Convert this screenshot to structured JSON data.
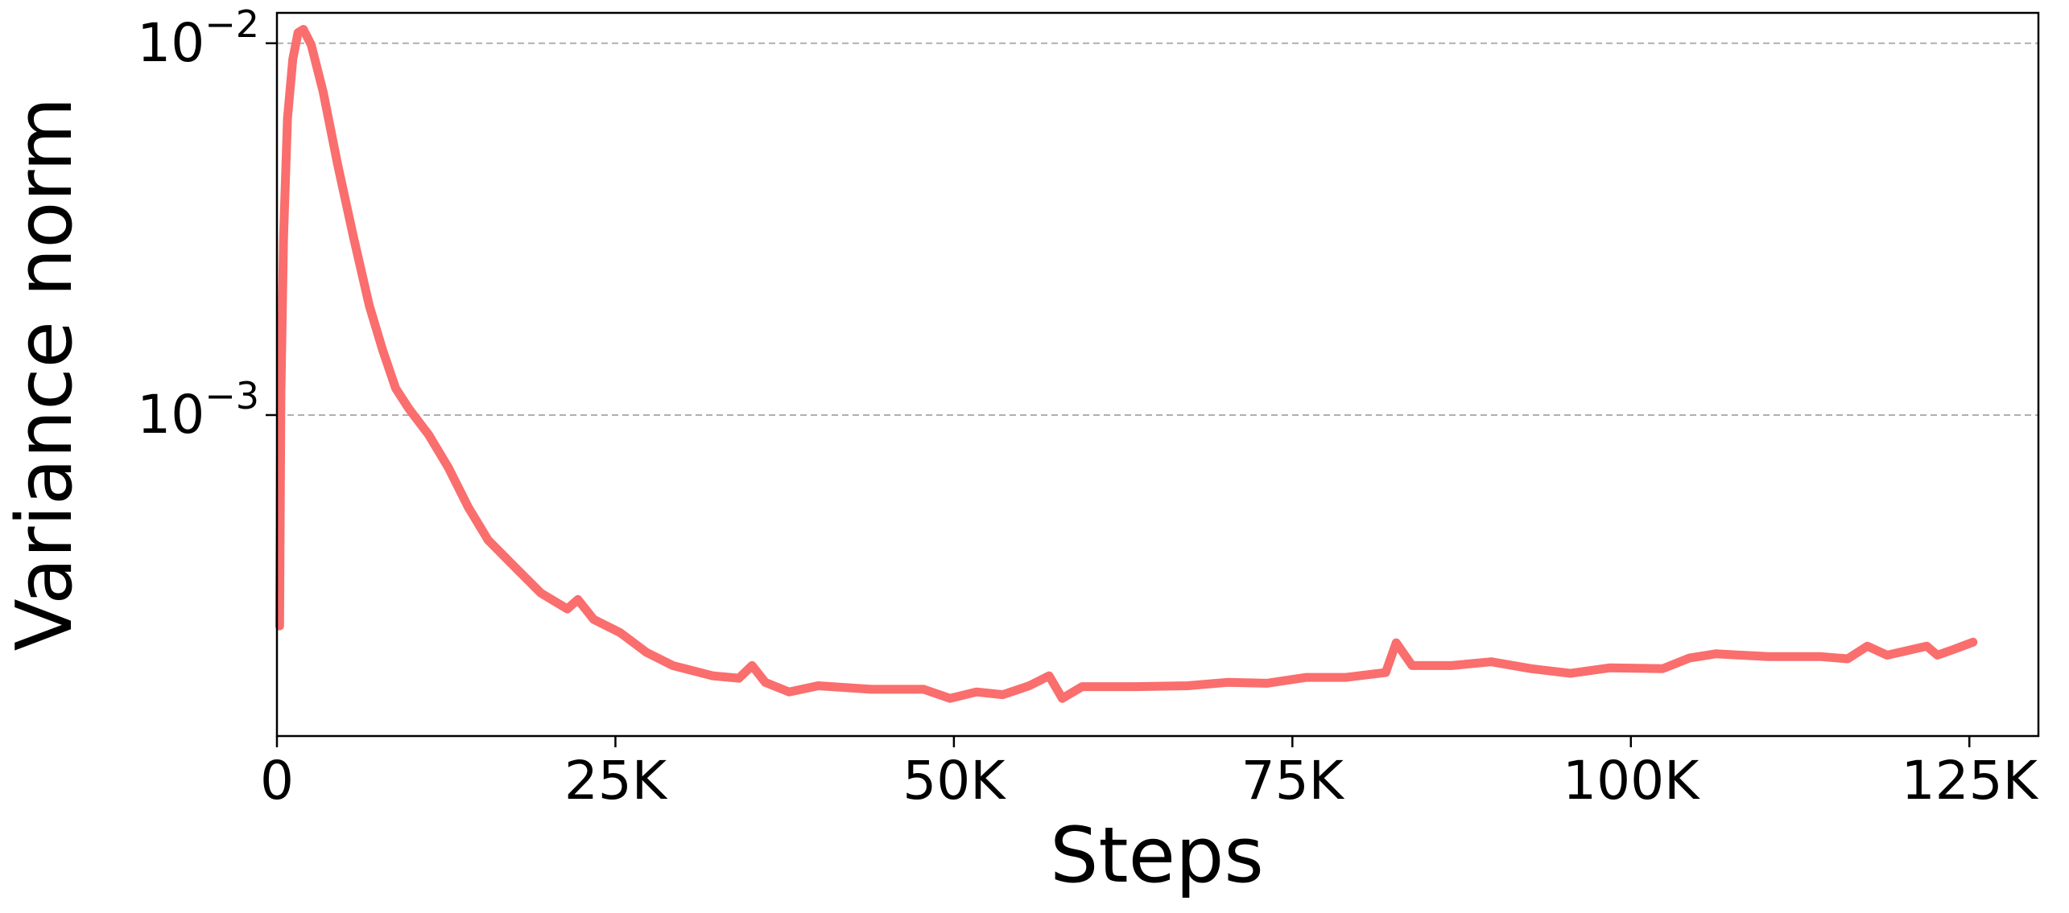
{
  "chart_data": {
    "type": "line",
    "x_label": "Steps",
    "y_label": "Variance norm",
    "y_scale": "log",
    "grid": "y-major",
    "xlim": [
      0,
      130100
    ],
    "ylim": [
      0.000137,
      0.01207
    ],
    "xticks": [
      {
        "value": 0,
        "label": "0"
      },
      {
        "value": 25000,
        "label": "25K"
      },
      {
        "value": 50000,
        "label": "50K"
      },
      {
        "value": 75000,
        "label": "75K"
      },
      {
        "value": 100000,
        "label": "100K"
      },
      {
        "value": 125000,
        "label": "125K"
      }
    ],
    "yticks": [
      {
        "value": 0.001,
        "label": "10−3"
      },
      {
        "value": 0.01,
        "label": "10−2"
      }
    ],
    "x": [
      195,
      292,
      487,
      780,
      1170,
      1560,
      1950,
      2534,
      3412,
      4484,
      5654,
      6823,
      7798,
      8773,
      9748,
      11210,
      12672,
      14134,
      15597,
      17547,
      19496,
      21446,
      22226,
      23396,
      25345,
      27295,
      29245,
      32169,
      34119,
      35094,
      36069,
      37824,
      39969,
      43868,
      47768,
      49717,
      51667,
      53617,
      55567,
      57029,
      58004,
      59466,
      63366,
      67265,
      70190,
      73114,
      76039,
      78963,
      81888,
      82668,
      83838,
      86763,
      89687,
      92612,
      95536,
      98461,
      102360,
      104310,
      106260,
      110160,
      114060,
      116010,
      117470,
      118930,
      121860,
      122640,
      123810,
      125270
    ],
    "series": [
      {
        "color": "#fa6e6e",
        "values": [
          0.000271,
          0.00113,
          0.00301,
          0.00628,
          0.00906,
          0.01067,
          0.0109,
          0.0099,
          0.0074,
          0.00472,
          0.00301,
          0.00197,
          0.0015,
          0.00118,
          0.00104,
          0.000885,
          0.000721,
          0.000565,
          0.000461,
          0.000391,
          0.000332,
          0.000301,
          0.000319,
          0.000282,
          0.00026,
          0.00023,
          0.000212,
          0.000199,
          0.000196,
          0.000212,
          0.000191,
          0.00018,
          0.000187,
          0.000183,
          0.000183,
          0.000173,
          0.00018,
          0.000177,
          0.000187,
          0.000199,
          0.000173,
          0.000186,
          0.000186,
          0.000187,
          0.000191,
          0.00019,
          0.000197,
          0.000197,
          0.000203,
          0.000244,
          0.000212,
          0.000212,
          0.000217,
          0.000208,
          0.000202,
          0.000209,
          0.000208,
          0.000222,
          0.000228,
          0.000224,
          0.000224,
          0.000221,
          0.000239,
          0.000226,
          0.000239,
          0.000226,
          0.000234,
          0.000245
        ]
      }
    ]
  }
}
